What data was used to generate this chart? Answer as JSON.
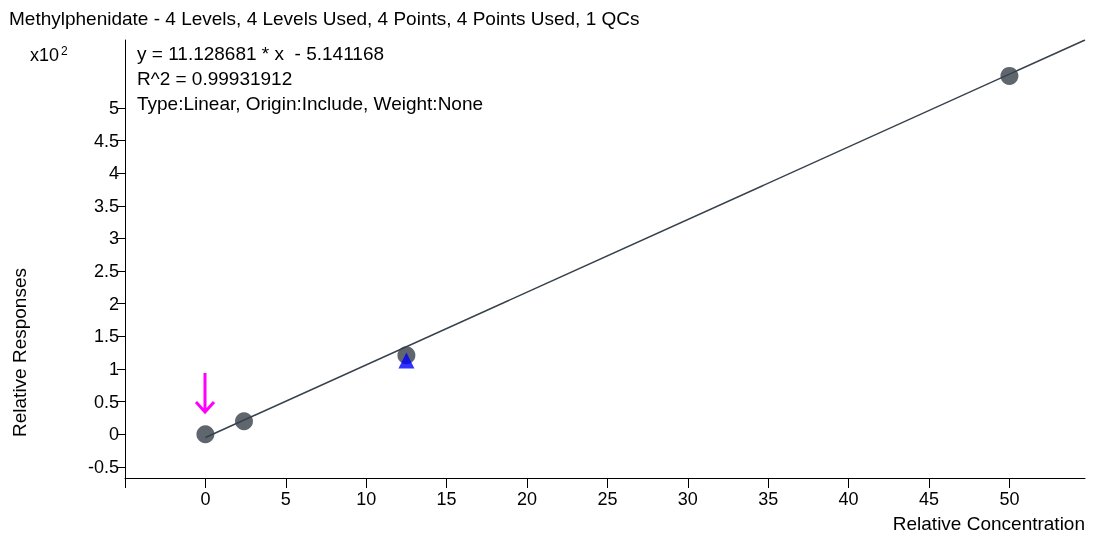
{
  "chart_data": {
    "type": "scatter",
    "title": "Methylphenidate - 4 Levels, 4 Levels Used, 4 Points, 4 Points Used, 1 QCs",
    "xlabel": "Relative Concentration",
    "ylabel": "Relative Responses",
    "annotations": [
      "x10$^{2}$",
      "y = 11.128681 * x  - 5.141168",
      "R^2 = 0.99931912",
      "Type:Linear, Origin:Include, Weight:None"
    ],
    "series": [
      {
        "type": "line",
        "color": "#37414b",
        "marker": "none",
        "x": [
          0,
          54.7
        ],
        "values": [
          -0.05,
          6.04
        ]
      },
      {
        "color": "#37404a",
        "marker": "circle",
        "x": [
          0,
          2.4,
          12.5,
          50
        ],
        "values": [
          0,
          0.2,
          1.21,
          5.49
        ]
      },
      {
        "color": "#0000ff",
        "marker": "triangle",
        "x": [
          12.5
        ],
        "values": [
          1.13
        ]
      }
    ],
    "xlim": [
      -5,
      54.7
    ],
    "ylim": [
      -0.67,
      6.04
    ],
    "xticks": [
      {
        "value": -5,
        "label": null
      },
      0,
      5,
      10,
      15,
      20,
      25,
      30,
      35,
      40,
      45,
      50
    ],
    "yticks": [
      -0.5,
      0,
      0.5,
      1,
      1.5,
      2,
      2.5,
      3,
      3.5,
      4,
      4.5,
      5
    ],
    "grid": false
  }
}
